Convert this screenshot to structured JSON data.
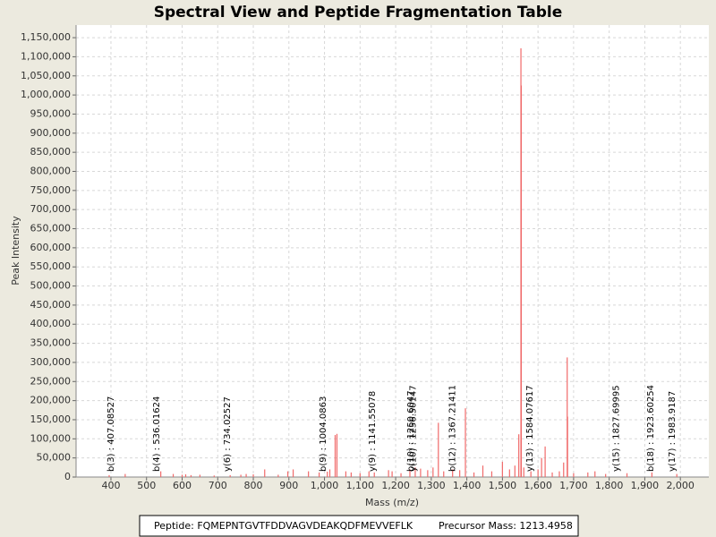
{
  "chart_data": {
    "type": "bar",
    "title": "Spectral View and Peptide Fragmentation Table",
    "x_label": "Mass (m/z)",
    "y_label": "Peak Intensity",
    "color": "#f06a6a",
    "grid": true,
    "xlim": [
      302,
      2080
    ],
    "ylim": [
      0,
      1183000
    ],
    "xticks": [
      400,
      500,
      600,
      700,
      800,
      900,
      {
        "value": 1000,
        "label": "1,000"
      },
      {
        "value": 1100,
        "label": "1,100"
      },
      {
        "value": 1200,
        "label": "1,200"
      },
      {
        "value": 1300,
        "label": "1,300"
      },
      {
        "value": 1400,
        "label": "1,400"
      },
      {
        "value": 1500,
        "label": "1,500"
      },
      {
        "value": 1600,
        "label": "1,600"
      },
      {
        "value": 1700,
        "label": "1,700"
      },
      {
        "value": 1800,
        "label": "1,800"
      },
      {
        "value": 1900,
        "label": "1,900"
      },
      {
        "value": 2000,
        "label": "2,000"
      }
    ],
    "yticks": [
      0,
      {
        "value": 50000,
        "label": "50,000"
      },
      {
        "value": 100000,
        "label": "100,000"
      },
      {
        "value": 150000,
        "label": "150,000"
      },
      {
        "value": 200000,
        "label": "200,000"
      },
      {
        "value": 250000,
        "label": "250,000"
      },
      {
        "value": 300000,
        "label": "300,000"
      },
      {
        "value": 350000,
        "label": "350,000"
      },
      {
        "value": 400000,
        "label": "400,000"
      },
      {
        "value": 450000,
        "label": "450,000"
      },
      {
        "value": 500000,
        "label": "500,000"
      },
      {
        "value": 550000,
        "label": "550,000"
      },
      {
        "value": 600000,
        "label": "600,000"
      },
      {
        "value": 650000,
        "label": "650,000"
      },
      {
        "value": 700000,
        "label": "700,000"
      },
      {
        "value": 750000,
        "label": "750,000"
      },
      {
        "value": 800000,
        "label": "800,000"
      },
      {
        "value": 850000,
        "label": "850,000"
      },
      {
        "value": 900000,
        "label": "900,000"
      },
      {
        "value": 950000,
        "label": "950,000"
      },
      {
        "value": 1000000,
        "label": "1,000,000"
      },
      {
        "value": 1050000,
        "label": "1,050,000"
      },
      {
        "value": 1100000,
        "label": "1,100,000"
      },
      {
        "value": 1150000,
        "label": "1,150,000"
      }
    ],
    "x": [
      395,
      440,
      540,
      575,
      600,
      610,
      625,
      650,
      690,
      735,
      765,
      780,
      800,
      832,
      870,
      897,
      912,
      955,
      985,
      1008,
      1015,
      1030,
      1035,
      1060,
      1075,
      1100,
      1125,
      1140,
      1180,
      1190,
      1215,
      1240,
      1255,
      1270,
      1290,
      1305,
      1320,
      1335,
      1360,
      1380,
      1396,
      1420,
      1445,
      1470,
      1500,
      1520,
      1535,
      1546,
      1552,
      1553,
      1560,
      1580,
      1600,
      1610,
      1620,
      1640,
      1660,
      1672,
      1682,
      1683,
      1700,
      1740,
      1760,
      1790,
      1850,
      1920,
      1990
    ],
    "values": [
      5000,
      8000,
      15000,
      8000,
      6000,
      7000,
      5000,
      6000,
      4000,
      5000,
      6000,
      8000,
      7000,
      20000,
      6000,
      15000,
      20000,
      15000,
      12000,
      14000,
      20000,
      110000,
      113000,
      15000,
      12000,
      10000,
      15000,
      12000,
      18000,
      15000,
      10000,
      20000,
      25000,
      22000,
      18000,
      25000,
      142000,
      15000,
      20000,
      18000,
      180000,
      12000,
      30000,
      15000,
      40000,
      20000,
      30000,
      112000,
      1122000,
      1025000,
      25000,
      15000,
      20000,
      50000,
      80000,
      12000,
      15000,
      38000,
      313000,
      158000,
      10000,
      12000,
      15000,
      8000,
      10000,
      12000,
      8000
    ],
    "annotations": [
      {
        "label": "b(3) : 407.08527",
        "x": 407.08527
      },
      {
        "label": "b(4) : 536.01624",
        "x": 536.01624
      },
      {
        "label": "y(6) : 734.02527",
        "x": 734.02527
      },
      {
        "label": "b(9) : 1004.0863",
        "x": 1004.0863
      },
      {
        "label": "y(9) : 1141.55078",
        "x": 1141.55078
      },
      {
        "label": "b(10) : 1250.6047",
        "x": 1250.6047
      },
      {
        "label": "y(10) : 1256.50147",
        "x": 1256.50147
      },
      {
        "label": "b(12) : 1367.21411",
        "x": 1367.21411
      },
      {
        "label": "y(13) : 1584.07617",
        "x": 1584.07617
      },
      {
        "label": "y(15) : 1827.69995",
        "x": 1827.69995
      },
      {
        "label": "b(18) : 1923.60254",
        "x": 1923.60254
      },
      {
        "label": "y(17) : 1983.9187",
        "x": 1983.9187
      }
    ]
  },
  "footer": {
    "peptide": "Peptide: FQMEPNTGVTFDDVAGVDEAKQDFMEVVEFLK",
    "precursor": "Precursor Mass: 1213.4958"
  }
}
